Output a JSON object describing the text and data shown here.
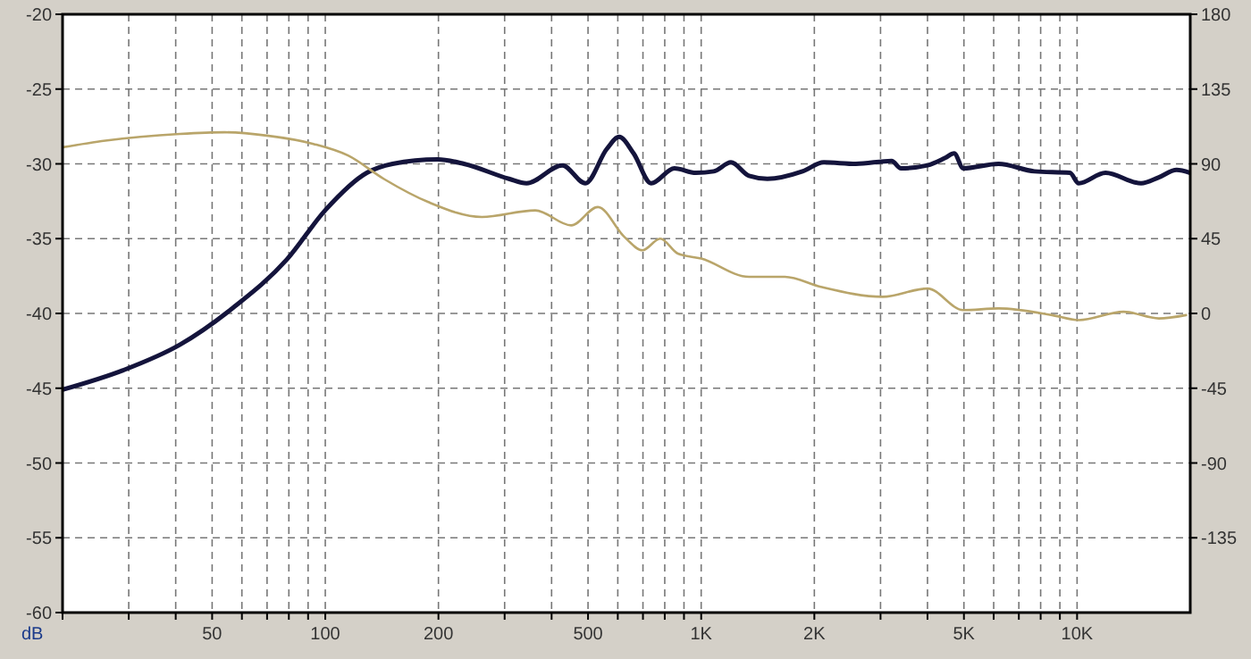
{
  "chart_data": {
    "type": "line",
    "ylabel": "dB",
    "log": "x",
    "grid": true,
    "xlim": [
      20,
      20000
    ],
    "xticks": [
      {
        "value": 20,
        "label": null
      },
      {
        "value": 30,
        "label": null
      },
      {
        "value": 40,
        "label": null
      },
      {
        "value": 50,
        "label": "50"
      },
      {
        "value": 60,
        "label": null
      },
      {
        "value": 70,
        "label": null
      },
      {
        "value": 80,
        "label": null
      },
      {
        "value": 90,
        "label": null
      },
      {
        "value": 100,
        "label": "100"
      },
      {
        "value": 200,
        "label": "200"
      },
      {
        "value": 300,
        "label": null
      },
      {
        "value": 400,
        "label": null
      },
      {
        "value": 500,
        "label": "500"
      },
      {
        "value": 600,
        "label": null
      },
      {
        "value": 700,
        "label": null
      },
      {
        "value": 800,
        "label": null
      },
      {
        "value": 900,
        "label": null
      },
      {
        "value": 1000,
        "label": "1K"
      },
      {
        "value": 2000,
        "label": "2K"
      },
      {
        "value": 3000,
        "label": null
      },
      {
        "value": 4000,
        "label": null
      },
      {
        "value": 5000,
        "label": "5K"
      },
      {
        "value": 6000,
        "label": null
      },
      {
        "value": 7000,
        "label": null
      },
      {
        "value": 8000,
        "label": null
      },
      {
        "value": 9000,
        "label": null
      },
      {
        "value": 10000,
        "label": "10K"
      }
    ],
    "ylim": [
      -60,
      -20
    ],
    "yticks": [
      -60,
      -55,
      -50,
      -45,
      -40,
      -35,
      -30,
      -25,
      -20
    ],
    "y2lim": [
      -180,
      180
    ],
    "y2ticks": [
      -135,
      -90,
      -45,
      0,
      45,
      90,
      135,
      180
    ],
    "series": [
      {
        "color": "#14143c",
        "x": [
          20,
          29,
          41,
          57,
          79,
          100,
          129,
          151,
          199,
          234,
          308,
          343,
          427,
          492,
          561,
          605,
          661,
          736,
          849,
          968,
          1080,
          1200,
          1340,
          1500,
          1860,
          2120,
          2580,
          3210,
          3400,
          4000,
          4460,
          4710,
          4980,
          6180,
          7700,
          9570,
          10100,
          11900,
          14800,
          16500,
          18400,
          20000
        ],
        "values": [
          -45.1,
          -43.8,
          -42.1,
          -39.6,
          -36.4,
          -33.1,
          -30.6,
          -30.0,
          -29.7,
          -30.0,
          -31.0,
          -31.3,
          -30.1,
          -31.3,
          -29.0,
          -28.2,
          -29.3,
          -31.3,
          -30.3,
          -30.6,
          -30.5,
          -29.9,
          -30.8,
          -31.0,
          -30.5,
          -29.9,
          -30.0,
          -29.8,
          -30.3,
          -30.1,
          -29.6,
          -29.3,
          -30.3,
          -30.0,
          -30.5,
          -30.6,
          -31.3,
          -30.6,
          -31.3,
          -30.9,
          -30.4,
          -30.6
        ]
      },
      {
        "color": "#b9a56a",
        "axis": "y2",
        "x": [
          20,
          26,
          41,
          54,
          70,
          93,
          115,
          143,
          188,
          261,
          362,
          451,
          531,
          625,
          698,
          778,
          867,
          1000,
          1340,
          1670,
          2080,
          3040,
          4000,
          4980,
          6180,
          8580,
          10100,
          13300,
          16500,
          19500
        ],
        "values": [
          100,
          104,
          108,
          109,
          107,
          102,
          95,
          81,
          67,
          58,
          62,
          53,
          64,
          46,
          38,
          45,
          36,
          33,
          22,
          22,
          16,
          10,
          15,
          2,
          3,
          -1,
          -4,
          1,
          -3,
          -1
        ]
      }
    ]
  }
}
